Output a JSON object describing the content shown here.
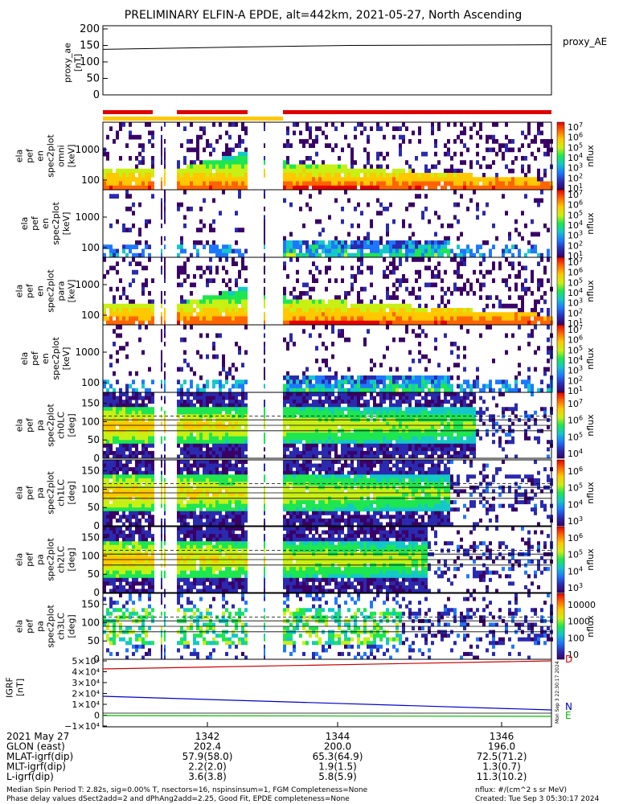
{
  "title": "PRELIMINARY ELFIN-A EPDE, alt=442km, 2021-05-27, North Ascending",
  "proxy_ae": {
    "ylabel": [
      "proxy_ae",
      "[nT]"
    ],
    "ticks": [
      "200",
      "150",
      "100",
      "50",
      "0"
    ],
    "tick_values": [
      200,
      150,
      100,
      50,
      0
    ],
    "ylim": [
      0,
      200
    ],
    "legend": "proxy_AE",
    "line": [
      [
        0,
        138
      ],
      [
        0.3,
        145
      ],
      [
        0.55,
        150
      ],
      [
        1,
        152
      ]
    ]
  },
  "spec_panels": [
    {
      "ylabel": [
        "ela",
        "pef",
        "en",
        "spec2plot",
        "omni",
        "[keV]"
      ],
      "ticks": [
        "1000",
        "100"
      ],
      "ticks_alt": [
        "100"
      ],
      "cbar_label": "nflux",
      "cbar_ticks": [
        "10^7",
        "10^6",
        "10^5",
        "10^4",
        "10^3",
        "10^2",
        "10^1"
      ]
    },
    {
      "ylabel": [
        "ela",
        "pef",
        "en",
        "spec2plot",
        "[keV]"
      ],
      "ticks": [
        "1000",
        "100"
      ],
      "cbar_label": "nflux",
      "cbar_ticks": [
        "10^7",
        "10^6",
        "10^5",
        "10^4",
        "10^3",
        "10^2",
        "10^1"
      ]
    },
    {
      "ylabel": [
        "ela",
        "pef",
        "en",
        "spec2plot",
        "para",
        "[keV]"
      ],
      "ticks": [
        "1000",
        "100"
      ],
      "cbar_label": "nflux",
      "cbar_ticks": [
        "10^7",
        "10^6",
        "10^5",
        "10^4",
        "10^3",
        "10^2",
        "10^1"
      ]
    },
    {
      "ylabel": [
        "ela",
        "pef",
        "en",
        "spec2plot",
        "[keV]"
      ],
      "ticks": [
        "1000",
        "100"
      ],
      "cbar_label": "nflux",
      "cbar_ticks": [
        "10^7",
        "10^6",
        "10^5",
        "10^4",
        "10^3",
        "10^2",
        "10^1"
      ]
    }
  ],
  "pa_panels": [
    {
      "ylabel": [
        "ela",
        "pef",
        "pa",
        "spec2plot",
        "ch0LC",
        "[deg]"
      ],
      "ticks": [
        "150",
        "100",
        "50",
        "0"
      ],
      "cbar_label": "nflux",
      "cbar_ticks": [
        "10^7",
        "10^6",
        "10^5",
        "10^4"
      ]
    },
    {
      "ylabel": [
        "ela",
        "pef",
        "pa",
        "spec2plot",
        "ch1LC",
        "[deg]"
      ],
      "ticks": [
        "150",
        "100",
        "50",
        "0"
      ],
      "cbar_label": "nflux",
      "cbar_ticks": [
        "10^6",
        "10^5",
        "10^4",
        "10^3"
      ]
    },
    {
      "ylabel": [
        "ela",
        "pef",
        "pa",
        "spec2plot",
        "ch2LC",
        "[deg]"
      ],
      "ticks": [
        "150",
        "100",
        "50",
        "0"
      ],
      "cbar_label": "nflux",
      "cbar_ticks": [
        "10^6",
        "10^5",
        "10^4",
        "10^3"
      ]
    },
    {
      "ylabel": [
        "ela",
        "pef",
        "pa",
        "spec2plot",
        "ch3LC",
        "[deg]"
      ],
      "ticks": [
        "150",
        "100",
        "50",
        "0"
      ],
      "cbar_label": "nflux",
      "cbar_ticks": [
        "10000",
        "1000",
        "100",
        "10"
      ]
    }
  ],
  "igrf": {
    "ylabel": [
      "IGRF",
      "[nT]"
    ],
    "ticks": [
      "5×10⁴",
      "4×10⁴",
      "3×10⁴",
      "2×10⁴",
      "1×10⁴",
      "0",
      "−1×10⁴"
    ],
    "legend": [
      "D",
      "N",
      "E"
    ],
    "side_text": "Mon Sep  3 22:30:17 2024"
  },
  "footer": {
    "rows": [
      {
        "label": "2021 May 27",
        "values": [
          "1342",
          "1344",
          "1346"
        ]
      },
      {
        "label": "GLON (east)",
        "values": [
          "202.4",
          "200.0",
          "196.0"
        ]
      },
      {
        "label": "MLAT-igrf(dip)",
        "values": [
          "57.9(58.0)",
          "65.3(64.9)",
          "72.5(71.2)"
        ]
      },
      {
        "label": "MLT-igrf(dip)",
        "values": [
          "2.2(2.0)",
          "1.9(1.5)",
          "1.3(0.7)"
        ]
      },
      {
        "label": "L-igrf(dip)",
        "values": [
          "3.6(3.8)",
          "5.8(5.9)",
          "11.3(10.2)"
        ]
      }
    ],
    "note1": "Median Spin Period T: 2.82s, sig=0.00% T, nsectors=16, nspinsinsum=1, FGM Completeness=None",
    "note2": "Phase delay values dSect2add=2 and dPhAng2add=2.25, Good Fit, EPDE completeness=None",
    "units": "nflux: #/(cm^2 s sr MeV)",
    "created": "Created: Tue Sep  3 05:30:17 2024"
  },
  "chart_data": {
    "type": "heatmap",
    "title": "PRELIMINARY ELFIN-A EPDE, alt=442km, 2021-05-27, North Ascending",
    "x_tick_labels": [
      "1342",
      "1344",
      "1346"
    ],
    "proxy_ae": {
      "ylim": [
        0,
        200
      ],
      "values_start_end": [
        138,
        152
      ]
    },
    "energy_panels_ylim_keV": [
      60,
      7000
    ],
    "pitch_angle_ylim_deg": [
      0,
      180
    ],
    "igrf_ylim": [
      -10000,
      50000
    ],
    "colorscale": [
      "#3a0066",
      "#2a2ab0",
      "#1e78ff",
      "#14c8c8",
      "#1ee650",
      "#c8f014",
      "#ffc800",
      "#ff6400",
      "#e60000"
    ]
  }
}
